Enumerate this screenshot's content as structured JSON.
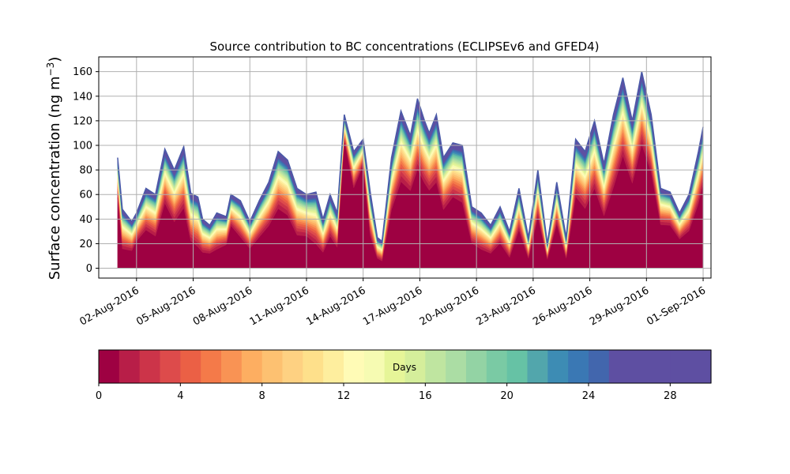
{
  "chart_data": {
    "type": "area",
    "stacked": true,
    "title": "Source contribution to BC concentrations (ECLIPSEv6 and GFED4)",
    "ylabel_main": "Surface concentration (ng m",
    "ylabel_sup": "−3",
    "ylabel_close": ")",
    "xlabel": "",
    "ylim": [
      -8,
      172
    ],
    "yticks": [
      0,
      20,
      40,
      60,
      80,
      100,
      120,
      140,
      160
    ],
    "xlim": [
      "2016-07-31T00:00",
      "2016-09-01T10:00"
    ],
    "xticks": [
      {
        "date": "2016-08-02",
        "label": "02-Aug-2016"
      },
      {
        "date": "2016-08-05",
        "label": "05-Aug-2016"
      },
      {
        "date": "2016-08-08",
        "label": "08-Aug-2016"
      },
      {
        "date": "2016-08-11",
        "label": "11-Aug-2016"
      },
      {
        "date": "2016-08-14",
        "label": "14-Aug-2016"
      },
      {
        "date": "2016-08-17",
        "label": "17-Aug-2016"
      },
      {
        "date": "2016-08-20",
        "label": "20-Aug-2016"
      },
      {
        "date": "2016-08-23",
        "label": "23-Aug-2016"
      },
      {
        "date": "2016-08-26",
        "label": "26-Aug-2016"
      },
      {
        "date": "2016-08-29",
        "label": "29-Aug-2016"
      },
      {
        "date": "2016-09-01",
        "label": "01-Sep-2016"
      }
    ],
    "grid": true,
    "series_note_days": 30,
    "total": {
      "x": [
        "2016-08-01T00:00",
        "2016-08-01T06:00",
        "2016-08-01T12:00",
        "2016-08-01T18:00",
        "2016-08-02T00:00",
        "2016-08-02T12:00",
        "2016-08-03T00:00",
        "2016-08-03T12:00",
        "2016-08-04T00:00",
        "2016-08-04T12:00",
        "2016-08-04T21:00",
        "2016-08-05T06:00",
        "2016-08-05T12:00",
        "2016-08-05T21:00",
        "2016-08-06T06:00",
        "2016-08-06T18:00",
        "2016-08-07T00:00",
        "2016-08-07T12:00",
        "2016-08-08T00:00",
        "2016-08-08T12:00",
        "2016-08-09T00:00",
        "2016-08-09T12:00",
        "2016-08-10T00:00",
        "2016-08-10T12:00",
        "2016-08-11T00:00",
        "2016-08-11T12:00",
        "2016-08-11T21:00",
        "2016-08-12T06:00",
        "2016-08-12T15:00",
        "2016-08-13T00:00",
        "2016-08-13T12:00",
        "2016-08-14T00:00",
        "2016-08-14T09:00",
        "2016-08-14T18:00",
        "2016-08-15T00:00",
        "2016-08-15T12:00",
        "2016-08-16T00:00",
        "2016-08-16T12:00",
        "2016-08-16T21:00",
        "2016-08-17T06:00",
        "2016-08-17T12:00",
        "2016-08-17T21:00",
        "2016-08-18T06:00",
        "2016-08-18T18:00",
        "2016-08-19T06:00",
        "2016-08-19T18:00",
        "2016-08-20T06:00",
        "2016-08-20T18:00",
        "2016-08-21T06:00",
        "2016-08-21T18:00",
        "2016-08-22T06:00",
        "2016-08-22T18:00",
        "2016-08-23T06:00",
        "2016-08-23T18:00",
        "2016-08-24T06:00",
        "2016-08-24T18:00",
        "2016-08-25T06:00",
        "2016-08-25T18:00",
        "2016-08-26T06:00",
        "2016-08-26T18:00",
        "2016-08-27T06:00",
        "2016-08-27T18:00",
        "2016-08-28T06:00",
        "2016-08-28T18:00",
        "2016-08-29T06:00",
        "2016-08-29T18:00",
        "2016-08-30T06:00",
        "2016-08-30T18:00",
        "2016-08-31T06:00",
        "2016-08-31T18:00",
        "2016-09-01T00:00"
      ],
      "y": [
        90,
        48,
        43,
        38,
        45,
        65,
        60,
        97,
        80,
        99,
        61,
        58,
        40,
        35,
        45,
        42,
        60,
        55,
        38,
        55,
        70,
        95,
        88,
        65,
        60,
        62,
        40,
        60,
        45,
        125,
        95,
        105,
        62,
        25,
        22,
        90,
        128,
        108,
        138,
        120,
        110,
        125,
        90,
        102,
        100,
        50,
        45,
        35,
        50,
        30,
        65,
        25,
        80,
        20,
        70,
        25,
        105,
        95,
        120,
        85,
        125,
        155,
        120,
        160,
        125,
        65,
        62,
        45,
        60,
        95,
        115
      ],
      "y_base": [
        52,
        10,
        10,
        10,
        18,
        25,
        20,
        45,
        30,
        40,
        15,
        10,
        8,
        8,
        10,
        15,
        30,
        20,
        12,
        20,
        28,
        40,
        35,
        20,
        20,
        12,
        8,
        20,
        12,
        100,
        60,
        80,
        20,
        5,
        3,
        40,
        60,
        55,
        70,
        60,
        55,
        60,
        40,
        50,
        45,
        15,
        10,
        8,
        15,
        5,
        25,
        5,
        35,
        5,
        30,
        5,
        50,
        40,
        55,
        35,
        55,
        80,
        60,
        90,
        70,
        30,
        30,
        20,
        25,
        45,
        60
      ]
    },
    "colorbar": {
      "label": "Days",
      "ticks": [
        0,
        4,
        8,
        12,
        16,
        20,
        24,
        28
      ],
      "range": [
        0,
        30
      ],
      "segments": 30,
      "colormap": "Spectral",
      "colors": [
        "#9e0142",
        "#b81e48",
        "#cc3449",
        "#dd4b4b",
        "#eb6045",
        "#f47a49",
        "#f99354",
        "#fdae61",
        "#fdc171",
        "#fed182",
        "#fee08b",
        "#feee9e",
        "#fffbb6",
        "#f6fbb2",
        "#e6f598",
        "#d5ee9b",
        "#bfe5a0",
        "#abdda4",
        "#93d3a4",
        "#7acaa4",
        "#66c2a5",
        "#52a6ac",
        "#3d8cb4",
        "#3a78b4",
        "#4266ad",
        "#5e4fa2",
        "#5e4fa2",
        "#5e4fa2",
        "#5e4fa2",
        "#5e4fa2"
      ]
    }
  }
}
